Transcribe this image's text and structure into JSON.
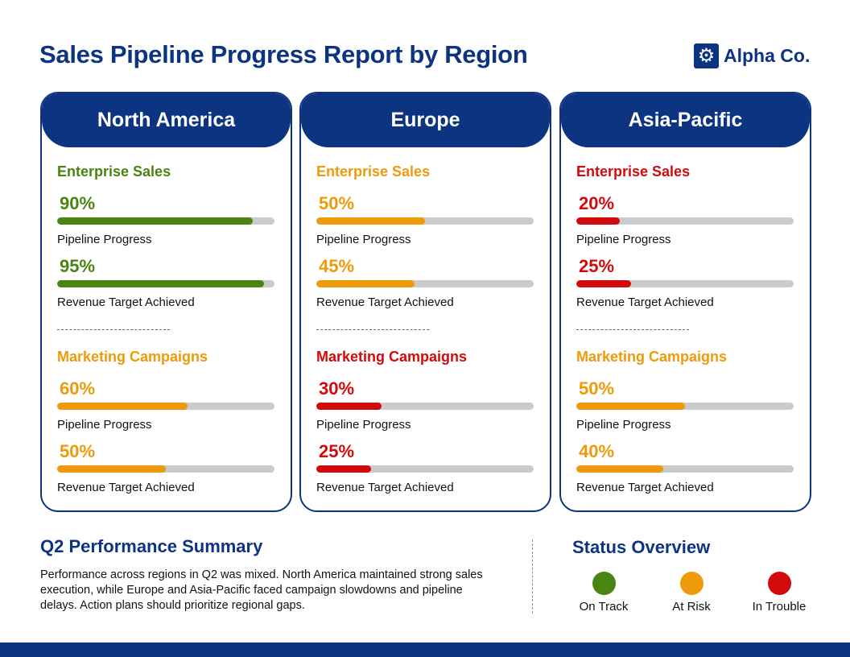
{
  "title": "Sales Pipeline Progress Report by Region",
  "logo": {
    "name": "Alpha Co.",
    "icon": "gear-icon"
  },
  "colors": {
    "navy": "#0d3481",
    "on_track": "#4a8411",
    "at_risk": "#ee9a0a",
    "in_trouble": "#d10b0b"
  },
  "regions": [
    {
      "name": "North America",
      "sections": [
        {
          "title": "Enterprise Sales",
          "status": "on_track",
          "metrics": [
            {
              "value": 90,
              "text": "90%",
              "label": "Pipeline Progress"
            },
            {
              "value": 95,
              "text": "95%",
              "label": "Revenue Target Achieved"
            }
          ]
        },
        {
          "title": "Marketing Campaigns",
          "status": "at_risk",
          "metrics": [
            {
              "value": 60,
              "text": "60%",
              "label": "Pipeline Progress"
            },
            {
              "value": 50,
              "text": "50%",
              "label": "Revenue Target Achieved"
            }
          ]
        }
      ]
    },
    {
      "name": "Europe",
      "sections": [
        {
          "title": "Enterprise Sales",
          "status": "at_risk",
          "metrics": [
            {
              "value": 50,
              "text": "50%",
              "label": "Pipeline Progress"
            },
            {
              "value": 45,
              "text": "45%",
              "label": "Revenue Target Achieved"
            }
          ]
        },
        {
          "title": "Marketing Campaigns",
          "status": "in_trouble",
          "metrics": [
            {
              "value": 30,
              "text": "30%",
              "label": "Pipeline Progress"
            },
            {
              "value": 25,
              "text": "25%",
              "label": "Revenue Target Achieved"
            }
          ]
        }
      ]
    },
    {
      "name": "Asia-Pacific",
      "sections": [
        {
          "title": "Enterprise Sales",
          "status": "in_trouble",
          "metrics": [
            {
              "value": 20,
              "text": "20%",
              "label": "Pipeline Progress"
            },
            {
              "value": 25,
              "text": "25%",
              "label": "Revenue Target Achieved"
            }
          ]
        },
        {
          "title": "Marketing Campaigns",
          "status": "at_risk",
          "metrics": [
            {
              "value": 50,
              "text": "50%",
              "label": "Pipeline Progress"
            },
            {
              "value": 40,
              "text": "40%",
              "label": "Revenue Target Achieved"
            }
          ]
        }
      ]
    }
  ],
  "summary": {
    "title": "Q2 Performance Summary",
    "text": "Performance across regions in Q2 was mixed. North America maintained strong sales execution, while Europe and Asia-Pacific faced campaign slowdowns and pipeline delays. Action plans should prioritize regional gaps."
  },
  "status_overview": {
    "title": "Status Overview",
    "items": [
      {
        "key": "on_track",
        "label": "On Track"
      },
      {
        "key": "at_risk",
        "label": "At Risk"
      },
      {
        "key": "in_trouble",
        "label": "In Trouble"
      }
    ]
  }
}
